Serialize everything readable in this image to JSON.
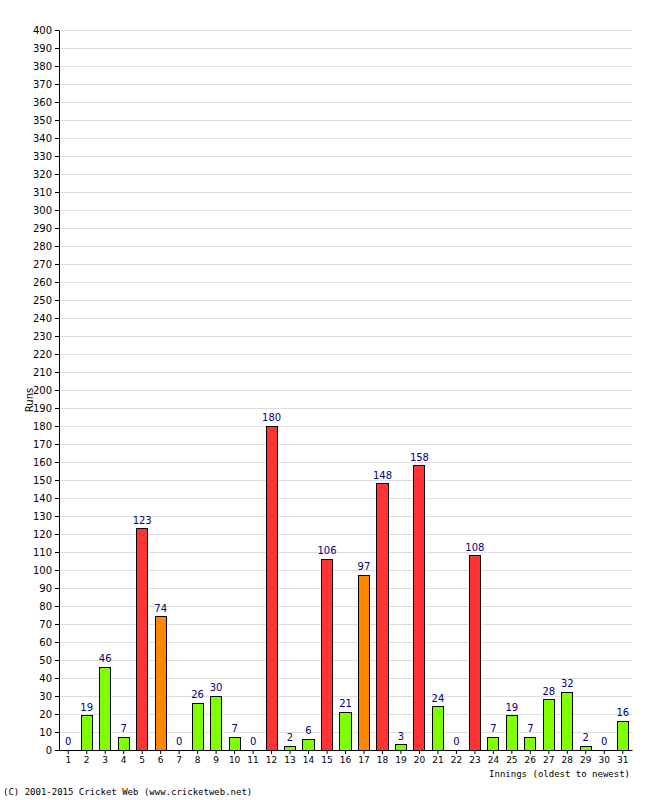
{
  "chart_data": {
    "type": "bar",
    "x_label": "Innings (oldest to newest)",
    "y_label": "Runs",
    "annotations": [
      "(C) 2001-2015 Cricket Web (www.cricketweb.net)"
    ],
    "categories": [
      "1",
      "2",
      "3",
      "4",
      "5",
      "6",
      "7",
      "8",
      "9",
      "10",
      "11",
      "12",
      "13",
      "14",
      "15",
      "16",
      "17",
      "18",
      "19",
      "20",
      "21",
      "22",
      "23",
      "24",
      "25",
      "26",
      "27",
      "28",
      "29",
      "30",
      "31"
    ],
    "values": [
      0,
      19,
      46,
      7,
      123,
      74,
      0,
      26,
      30,
      7,
      0,
      180,
      2,
      6,
      106,
      21,
      97,
      148,
      3,
      158,
      24,
      0,
      108,
      7,
      19,
      7,
      28,
      32,
      2,
      0,
      16
    ],
    "colors": [
      "#80ff00",
      "#80ff00",
      "#80ff00",
      "#80ff00",
      "#ff3333",
      "#ff8800",
      "#80ff00",
      "#80ff00",
      "#80ff00",
      "#80ff00",
      "#80ff00",
      "#ff3333",
      "#80ff00",
      "#80ff00",
      "#ff3333",
      "#80ff00",
      "#ff8800",
      "#ff3333",
      "#80ff00",
      "#ff3333",
      "#80ff00",
      "#80ff00",
      "#ff3333",
      "#80ff00",
      "#80ff00",
      "#80ff00",
      "#80ff00",
      "#80ff00",
      "#80ff00",
      "#80ff00",
      "#80ff00"
    ],
    "ylim": [
      0,
      400
    ],
    "yticks": [
      0,
      10,
      20,
      30,
      40,
      50,
      60,
      70,
      80,
      90,
      100,
      110,
      120,
      130,
      140,
      150,
      160,
      170,
      180,
      190,
      200,
      210,
      220,
      230,
      240,
      250,
      260,
      270,
      280,
      290,
      300,
      310,
      320,
      330,
      340,
      350,
      360,
      370,
      380,
      390,
      400
    ],
    "grid": true,
    "data_labels": true
  }
}
